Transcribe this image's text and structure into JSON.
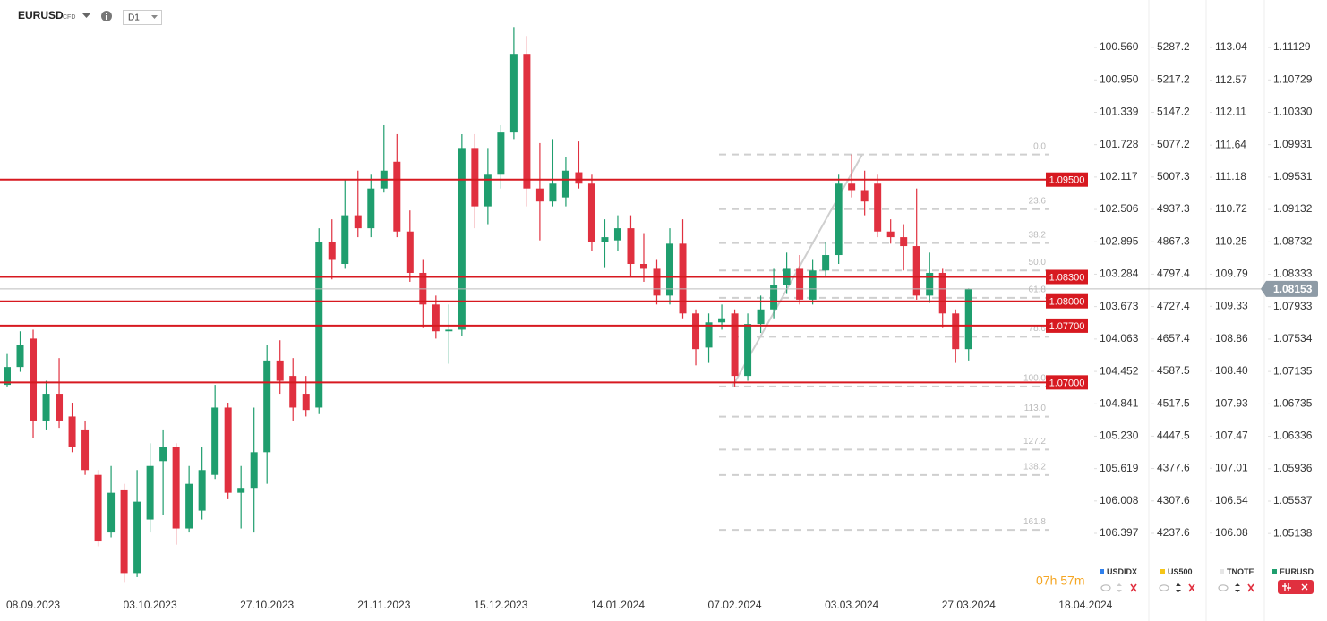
{
  "header": {
    "tag": "CFD",
    "timeframe": "D1"
  },
  "countdown": "07h 57m",
  "chart_data": {
    "type": "candlestick",
    "name": "EURUSD",
    "color": "#1f9e6e",
    "color_up": "#1f9e6e",
    "color_down": "#e0303f",
    "categories": [
      null,
      null,
      "08.09.2023",
      null,
      null,
      null,
      null,
      null,
      null,
      null,
      null,
      "03.10.2023",
      null,
      null,
      null,
      null,
      null,
      null,
      null,
      null,
      "27.10.2023",
      null,
      null,
      null,
      null,
      null,
      null,
      null,
      null,
      "21.11.2023",
      null,
      null,
      null,
      null,
      null,
      null,
      null,
      null,
      "15.12.2023",
      null,
      null,
      null,
      null,
      null,
      null,
      null,
      null,
      "14.01.2024",
      null,
      null,
      null,
      null,
      null,
      null,
      null,
      null,
      "07.02.2024",
      null,
      null,
      null,
      null,
      null,
      null,
      null,
      null,
      "03.03.2024",
      null,
      null,
      null,
      null,
      null,
      null,
      null,
      null,
      "27.03.2024",
      null,
      null,
      null,
      null,
      null,
      null,
      null,
      null,
      "18.04.2024"
    ],
    "ohlc": [
      [
        1.0697,
        1.0735,
        1.0695,
        1.0719
      ],
      [
        1.0719,
        1.0763,
        1.0713,
        1.0746
      ],
      [
        1.0754,
        1.0765,
        1.0631,
        1.0653
      ],
      [
        1.0653,
        1.0702,
        1.0642,
        1.0686
      ],
      [
        1.0686,
        1.073,
        1.0644,
        1.0653
      ],
      [
        1.0658,
        1.0675,
        1.0614,
        1.062
      ],
      [
        1.0642,
        1.0653,
        1.0586,
        1.0592
      ],
      [
        1.0586,
        1.0592,
        1.0498,
        1.0504
      ],
      [
        1.0515,
        1.0597,
        1.0509,
        1.0564
      ],
      [
        1.0567,
        1.0575,
        1.0454,
        1.0465
      ],
      [
        1.0465,
        1.0592,
        1.046,
        1.0553
      ],
      [
        1.0531,
        1.0625,
        1.0515,
        1.0597
      ],
      [
        1.0603,
        1.0642,
        1.0537,
        1.062
      ],
      [
        1.062,
        1.0625,
        1.05,
        1.052
      ],
      [
        1.052,
        1.0597,
        1.0515,
        1.0575
      ],
      [
        1.0542,
        1.062,
        1.0531,
        1.0592
      ],
      [
        1.0586,
        1.0697,
        1.0581,
        1.0669
      ],
      [
        1.0669,
        1.0675,
        1.0556,
        1.0564
      ],
      [
        1.0564,
        1.0597,
        1.052,
        1.057
      ],
      [
        1.057,
        1.0669,
        1.0515,
        1.0614
      ],
      [
        1.0614,
        1.0746,
        1.0575,
        1.0727
      ],
      [
        1.0727,
        1.0752,
        1.0686,
        1.0702
      ],
      [
        1.0708,
        1.073,
        1.0653,
        1.0669
      ],
      [
        1.0686,
        1.0708,
        1.0658,
        1.0666
      ],
      [
        1.0669,
        1.089,
        1.0661,
        1.0873
      ],
      [
        1.0873,
        1.0901,
        1.0827,
        1.0851
      ],
      [
        1.0846,
        1.095,
        1.084,
        1.0906
      ],
      [
        1.0906,
        1.0961,
        1.0879,
        1.089
      ],
      [
        1.089,
        1.0956,
        1.0879,
        1.0939
      ],
      [
        1.0939,
        1.1017,
        1.0934,
        1.0961
      ],
      [
        1.0972,
        1.1006,
        1.0879,
        1.0886
      ],
      [
        1.0886,
        1.0912,
        1.0824,
        1.0835
      ],
      [
        1.0835,
        1.0851,
        1.0768,
        1.0796
      ],
      [
        1.0796,
        1.0807,
        1.0754,
        1.0763
      ],
      [
        1.0763,
        1.0796,
        1.0723,
        1.0765
      ],
      [
        1.0765,
        1.1006,
        1.0757,
        1.0989
      ],
      [
        1.0989,
        1.1006,
        1.089,
        1.0917
      ],
      [
        1.0917,
        1.0989,
        1.0895,
        1.0956
      ],
      [
        1.0956,
        1.1017,
        1.0939,
        1.1008
      ],
      [
        1.1008,
        1.1138,
        1.1,
        1.1105
      ],
      [
        1.1105,
        1.1127,
        1.0917,
        1.0939
      ],
      [
        1.0939,
        1.0995,
        1.0875,
        1.0923
      ],
      [
        1.0923,
        1.1,
        1.0917,
        1.0945
      ],
      [
        1.0928,
        1.0978,
        1.0917,
        1.0961
      ],
      [
        1.0959,
        1.0997,
        1.0939,
        1.0945
      ],
      [
        1.0945,
        1.0956,
        1.0862,
        1.0873
      ],
      [
        1.0873,
        1.0901,
        1.0842,
        1.0879
      ],
      [
        1.0875,
        1.0906,
        1.0862,
        1.089
      ],
      [
        1.089,
        1.0906,
        1.0829,
        1.0846
      ],
      [
        1.0846,
        1.0884,
        1.0824,
        1.084
      ],
      [
        1.084,
        1.0851,
        1.0796,
        1.0807
      ],
      [
        1.0807,
        1.089,
        1.0796,
        1.0871
      ],
      [
        1.0871,
        1.0901,
        1.0779,
        1.0785
      ],
      [
        1.0785,
        1.079,
        1.0721,
        1.0741
      ],
      [
        1.0743,
        1.0785,
        1.0724,
        1.0774
      ],
      [
        1.0774,
        1.0796,
        1.0765,
        1.0779
      ],
      [
        1.0785,
        1.079,
        1.0695,
        1.0708
      ],
      [
        1.0708,
        1.0785,
        1.0702,
        1.0772
      ],
      [
        1.0772,
        1.0807,
        1.0761,
        1.079
      ],
      [
        1.079,
        1.084,
        1.0779,
        1.082
      ],
      [
        1.082,
        1.086,
        1.0809,
        1.084
      ],
      [
        1.084,
        1.0857,
        1.0796,
        1.0802
      ],
      [
        1.0802,
        1.0851,
        1.0796,
        1.0838
      ],
      [
        1.0838,
        1.0873,
        1.0829,
        1.0857
      ],
      [
        1.0857,
        1.0956,
        1.0846,
        1.0945
      ],
      [
        1.0945,
        1.0981,
        1.0928,
        1.0937
      ],
      [
        1.0937,
        1.0961,
        1.0906,
        1.0923
      ],
      [
        1.0945,
        1.0956,
        1.0879,
        1.0886
      ],
      [
        1.0886,
        1.0901,
        1.0871,
        1.0879
      ],
      [
        1.0879,
        1.0895,
        1.0838,
        1.0868
      ],
      [
        1.0868,
        1.0939,
        1.0802,
        1.0807
      ],
      [
        1.0807,
        1.086,
        1.0798,
        1.0835
      ],
      [
        1.0835,
        1.084,
        1.0768,
        1.0785
      ],
      [
        1.0785,
        1.079,
        1.0724,
        1.0741
      ],
      [
        1.0741,
        1.0816,
        1.0727,
        1.08153
      ],
      null,
      null,
      null,
      null,
      null,
      null,
      null,
      null,
      null
    ],
    "ylim": [
      1.04489,
      1.11714
    ],
    "yticks": [
      1.11129,
      1.10729,
      {
        "value": 1.1033,
        "label": "1.10330"
      },
      1.09931,
      1.09531,
      1.09132,
      1.08732,
      1.08333,
      1.07933,
      1.07534,
      1.07135,
      1.06735,
      1.06336,
      1.05936,
      1.05537,
      1.05138
    ],
    "levels": [
      {
        "value": 1.095,
        "label": "1.09500"
      },
      {
        "value": 1.083,
        "label": "1.08300"
      },
      {
        "value": 1.08,
        "label": "1.08000"
      },
      {
        "value": 1.077,
        "label": "1.07700"
      },
      {
        "value": 1.07,
        "label": "1.07000"
      }
    ],
    "level_color": "#d71920",
    "fib": {
      "high": 1.0981,
      "low": 1.0695,
      "color": "#cfcfcf",
      "levels": [
        {
          "value": 0,
          "label": "0.0"
        },
        23.6,
        38.2,
        {
          "value": 50,
          "label": "50.0"
        },
        61.8,
        78.6,
        {
          "value": 100,
          "label": "100.0"
        },
        {
          "value": 113,
          "label": "113.0"
        },
        127.2,
        138.2,
        161.8
      ]
    },
    "axes": [
      {
        "name": "USDIDX",
        "color": "#2f80ed",
        "ylim": [
          107.031,
          99.99
        ],
        "yticks": [
          {
            "value": 100.56,
            "label": "100.560"
          },
          {
            "value": 100.95,
            "label": "100.950"
          },
          101.339,
          101.728,
          102.117,
          102.506,
          102.895,
          103.284,
          103.673,
          104.063,
          104.452,
          104.841,
          {
            "value": 105.23,
            "label": "105.230"
          },
          105.619,
          106.008,
          106.397
        ]
      },
      {
        "name": "US500",
        "color": "#f5c518",
        "ylim": [
          4123.5,
          5389.7
        ],
        "yticks": [
          5287.2,
          5217.2,
          5147.2,
          5077.2,
          5007.3,
          4937.3,
          4867.3,
          4797.4,
          4727.4,
          4657.4,
          4587.5,
          4517.5,
          4447.5,
          4377.6,
          4307.6,
          4237.6
        ]
      },
      {
        "name": "TNOTE",
        "color": "#e6e6e6",
        "ylim": [
          105.32,
          113.72
        ],
        "yticks": [
          113.04,
          112.57,
          112.11,
          111.64,
          111.18,
          110.72,
          110.25,
          109.79,
          109.33,
          108.86,
          {
            "value": 108.4,
            "label": "108.40"
          },
          107.93,
          107.47,
          107.01,
          106.54,
          106.08
        ]
      }
    ]
  }
}
